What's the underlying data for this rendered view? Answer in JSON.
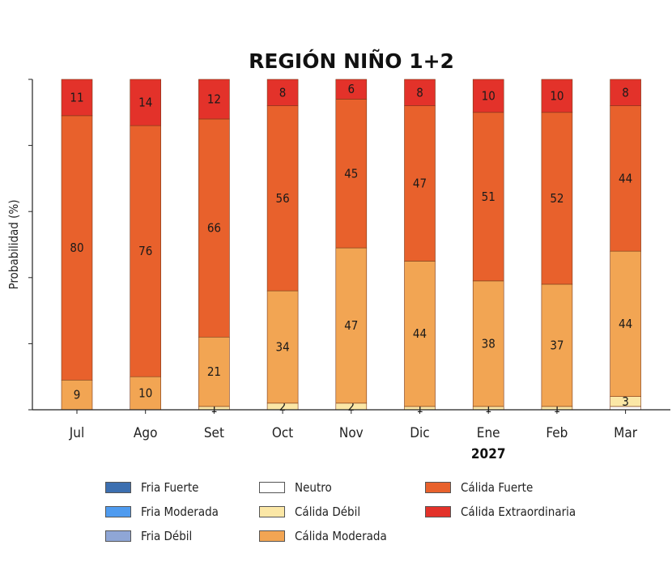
{
  "chart_data": {
    "type": "bar",
    "stacked": true,
    "title": "REGIÓN NIÑO 1+2",
    "ylabel": "Probabilidad (%)",
    "xlabel": "",
    "ylim": [
      0,
      100
    ],
    "categories": [
      "Jul",
      "Ago",
      "Set",
      "Oct",
      "Nov",
      "Dic",
      "Ene",
      "Feb",
      "Mar"
    ],
    "year_annotation": {
      "text": "2027",
      "under_category": "Ene"
    },
    "series": [
      {
        "name": "Fria Fuerte",
        "color": "#3c6fb0",
        "values": [
          0,
          0,
          0,
          0,
          0,
          0,
          0,
          0,
          0
        ],
        "labels": [
          "",
          "",
          "",
          "",
          "",
          "",
          "",
          "",
          ""
        ]
      },
      {
        "name": "Fria Moderada",
        "color": "#4f9bef",
        "values": [
          0,
          0,
          0,
          0,
          0,
          0,
          0,
          0,
          0
        ],
        "labels": [
          "",
          "",
          "",
          "",
          "",
          "",
          "",
          "",
          ""
        ]
      },
      {
        "name": "Fria Débil",
        "color": "#8fa6d6",
        "values": [
          0,
          0,
          0,
          0,
          0,
          0,
          0,
          0,
          0
        ],
        "labels": [
          "",
          "",
          "",
          "",
          "",
          "",
          "",
          "",
          ""
        ]
      },
      {
        "name": "Neutro",
        "color": "#ffffff",
        "values": [
          0,
          0,
          0,
          0,
          0,
          0,
          0,
          0,
          1
        ],
        "labels": [
          "",
          "",
          "",
          "",
          "",
          "",
          "",
          "",
          ""
        ]
      },
      {
        "name": "Cálida Débil",
        "color": "#fbe7a6",
        "values": [
          0,
          0,
          1,
          2,
          2,
          1,
          1,
          1,
          3
        ],
        "labels": [
          "",
          "",
          "1",
          "2",
          "2",
          "1",
          "1",
          "1",
          "3"
        ]
      },
      {
        "name": "Cálida Moderada",
        "color": "#f2a553",
        "values": [
          9,
          10,
          21,
          34,
          47,
          44,
          38,
          37,
          44
        ],
        "labels": [
          "9",
          "10",
          "21",
          "34",
          "47",
          "44",
          "38",
          "37",
          "44"
        ]
      },
      {
        "name": "Cálida Fuerte",
        "color": "#e8612c",
        "values": [
          80,
          76,
          66,
          56,
          45,
          47,
          51,
          52,
          44
        ],
        "labels": [
          "80",
          "76",
          "66",
          "56",
          "45",
          "47",
          "51",
          "52",
          "44"
        ]
      },
      {
        "name": "Cálida Extraordinaria",
        "color": "#e3322a",
        "values": [
          11,
          14,
          12,
          8,
          6,
          8,
          10,
          10,
          8
        ],
        "labels": [
          "11",
          "14",
          "12",
          "8",
          "6",
          "8",
          "10",
          "10",
          "8"
        ]
      }
    ],
    "legend_placement": "bottom"
  }
}
